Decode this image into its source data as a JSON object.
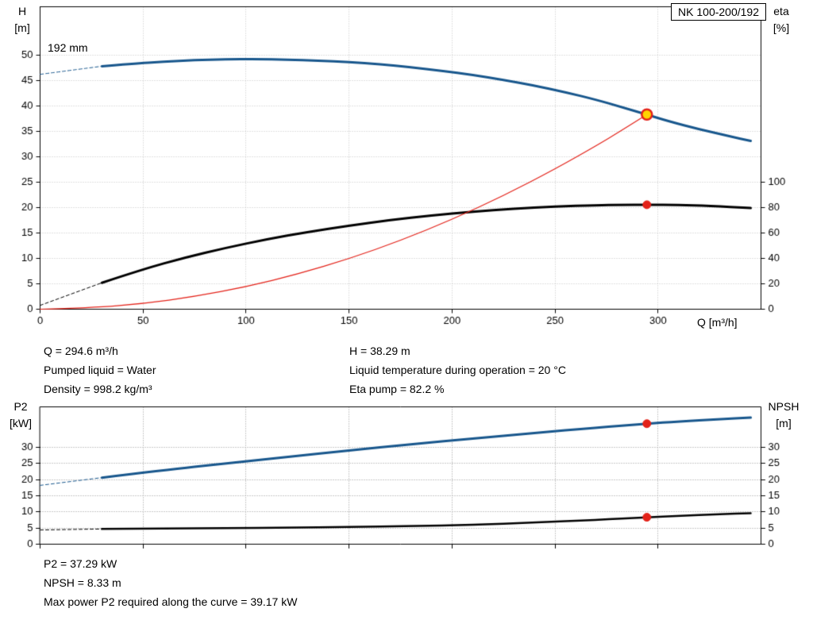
{
  "header": {
    "model": "NK 100-200/192"
  },
  "info": {
    "q": "Q = 294.6 m³/h",
    "pumped_liquid": "Pumped liquid = Water",
    "density": "Density = 998.2 kg/m³",
    "h": "H = 38.29 m",
    "temperature": "Liquid temperature during operation = 20 °C",
    "eta_pump": "Eta pump = 82.2 %",
    "p2": "P2 = 37.29 kW",
    "npsh": "NPSH = 8.33 m",
    "max_power": "Max power P2 required along the curve = 39.17 kW"
  },
  "chart_data": [
    {
      "type": "line",
      "name": "qh-eta-chart",
      "x_axis": {
        "label": "Q [m³/h]",
        "min": 0,
        "max": 350,
        "ticks": [
          0,
          50,
          100,
          150,
          200,
          250,
          300
        ],
        "show_tick_labels": true
      },
      "y_left": {
        "label_top": "H",
        "label_bottom": "[m]",
        "min": 0,
        "max": 59.5,
        "ticks": [
          0,
          5,
          10,
          15,
          20,
          25,
          30,
          35,
          40,
          45,
          50
        ]
      },
      "y_right": {
        "label_top": "eta",
        "label_bottom": "[%]",
        "ticks": [
          0,
          20,
          40,
          60,
          80,
          100
        ],
        "scale_to_left": 0.25
      },
      "series": [
        {
          "name": "head-curve",
          "label": "192 mm",
          "axis": "left",
          "color": "#17568c",
          "width": 3,
          "dashed_lead": [
            [
              0,
              46.2
            ],
            [
              15,
              47.0
            ],
            [
              30,
              47.8
            ]
          ],
          "points": [
            [
              30,
              47.8
            ],
            [
              45,
              48.3
            ],
            [
              60,
              48.7
            ],
            [
              75,
              49.0
            ],
            [
              90,
              49.15
            ],
            [
              105,
              49.2
            ],
            [
              120,
              49.1
            ],
            [
              135,
              48.9
            ],
            [
              150,
              48.6
            ],
            [
              165,
              48.2
            ],
            [
              180,
              47.6
            ],
            [
              195,
              46.9
            ],
            [
              210,
              46.1
            ],
            [
              225,
              45.1
            ],
            [
              240,
              44.0
            ],
            [
              255,
              42.7
            ],
            [
              270,
              41.2
            ],
            [
              282,
              39.8
            ],
            [
              294.6,
              38.29
            ],
            [
              305,
              37.0
            ],
            [
              320,
              35.4
            ],
            [
              335,
              34.0
            ],
            [
              345,
              33.1
            ]
          ]
        },
        {
          "name": "efficiency-curve",
          "axis": "right",
          "color": "#000000",
          "width": 3,
          "dashed_lead": [
            [
              0,
              3
            ],
            [
              30,
              20.8
            ]
          ],
          "points": [
            [
              30,
              20.8
            ],
            [
              50,
              31.5
            ],
            [
              70,
              40.5
            ],
            [
              90,
              48.2
            ],
            [
              110,
              55.0
            ],
            [
              130,
              60.8
            ],
            [
              150,
              65.8
            ],
            [
              170,
              70.2
            ],
            [
              190,
              73.8
            ],
            [
              210,
              76.8
            ],
            [
              230,
              79.2
            ],
            [
              250,
              80.8
            ],
            [
              270,
              81.8
            ],
            [
              282,
              82.1
            ],
            [
              294.6,
              82.2
            ],
            [
              310,
              82.0
            ],
            [
              325,
              81.2
            ],
            [
              345,
              79.6
            ]
          ]
        },
        {
          "name": "system-curve",
          "axis": "left",
          "color": "#e32219",
          "width": 1.2,
          "points": [
            [
              0,
              0
            ],
            [
              25,
              0.28
            ],
            [
              50,
              1.1
            ],
            [
              75,
              2.48
            ],
            [
              100,
              4.41
            ],
            [
              125,
              6.89
            ],
            [
              150,
              9.93
            ],
            [
              175,
              13.51
            ],
            [
              200,
              17.65
            ],
            [
              225,
              22.33
            ],
            [
              250,
              27.57
            ],
            [
              270,
              32.16
            ],
            [
              282,
              35.08
            ],
            [
              294.6,
              38.29
            ]
          ]
        }
      ],
      "markers": [
        {
          "name": "duty-point",
          "x": 294.6,
          "value": 38.29,
          "axis": "left",
          "fill": "#ffd500",
          "stroke": "#e32219",
          "r": 6.5,
          "stroke_width": 2.5
        },
        {
          "name": "efficiency-point",
          "x": 294.6,
          "value": 82.2,
          "axis": "right",
          "fill": "#e32219",
          "stroke": "#e32219",
          "r": 5,
          "stroke_width": 1
        }
      ]
    },
    {
      "type": "line",
      "name": "p2-npsh-chart",
      "x_axis": {
        "label": "",
        "min": 0,
        "max": 350,
        "ticks": [
          0,
          50,
          100,
          150,
          200,
          250,
          300
        ],
        "show_tick_labels": false
      },
      "y_left": {
        "label_top": "P2",
        "label_bottom": "[kW]",
        "min": 0,
        "max": 42.5,
        "ticks": [
          0,
          5,
          10,
          15,
          20,
          25,
          30
        ]
      },
      "y_right": {
        "label_top": "NPSH",
        "label_bottom": "[m]",
        "ticks": [
          0,
          5,
          10,
          15,
          20,
          25,
          30
        ],
        "scale_to_left": 1
      },
      "series": [
        {
          "name": "p2-curve",
          "axis": "left",
          "color": "#17568c",
          "width": 3,
          "dashed_lead": [
            [
              0,
              18.2
            ],
            [
              30,
              20.6
            ]
          ],
          "points": [
            [
              30,
              20.6
            ],
            [
              60,
              22.9
            ],
            [
              90,
              25.0
            ],
            [
              120,
              27.0
            ],
            [
              150,
              29.0
            ],
            [
              180,
              30.9
            ],
            [
              210,
              32.7
            ],
            [
              240,
              34.4
            ],
            [
              270,
              36.1
            ],
            [
              294.6,
              37.29
            ],
            [
              310,
              38.0
            ],
            [
              330,
              38.7
            ],
            [
              345,
              39.17
            ]
          ]
        },
        {
          "name": "npsh-curve",
          "axis": "right",
          "color": "#000000",
          "width": 2.5,
          "dashed_lead": [
            [
              0,
              4.4
            ],
            [
              30,
              4.7
            ]
          ],
          "points": [
            [
              30,
              4.7
            ],
            [
              60,
              4.85
            ],
            [
              90,
              4.95
            ],
            [
              120,
              5.1
            ],
            [
              150,
              5.3
            ],
            [
              180,
              5.6
            ],
            [
              210,
              6.0
            ],
            [
              240,
              6.7
            ],
            [
              270,
              7.5
            ],
            [
              294.6,
              8.33
            ],
            [
              310,
              8.8
            ],
            [
              330,
              9.3
            ],
            [
              345,
              9.6
            ]
          ]
        }
      ],
      "markers": [
        {
          "name": "p2-point",
          "x": 294.6,
          "value": 37.29,
          "axis": "left",
          "fill": "#e32219",
          "stroke": "#e32219",
          "r": 5,
          "stroke_width": 1
        },
        {
          "name": "npsh-point",
          "x": 294.6,
          "value": 8.33,
          "axis": "right",
          "fill": "#e32219",
          "stroke": "#e32219",
          "r": 5,
          "stroke_width": 1
        }
      ]
    }
  ]
}
